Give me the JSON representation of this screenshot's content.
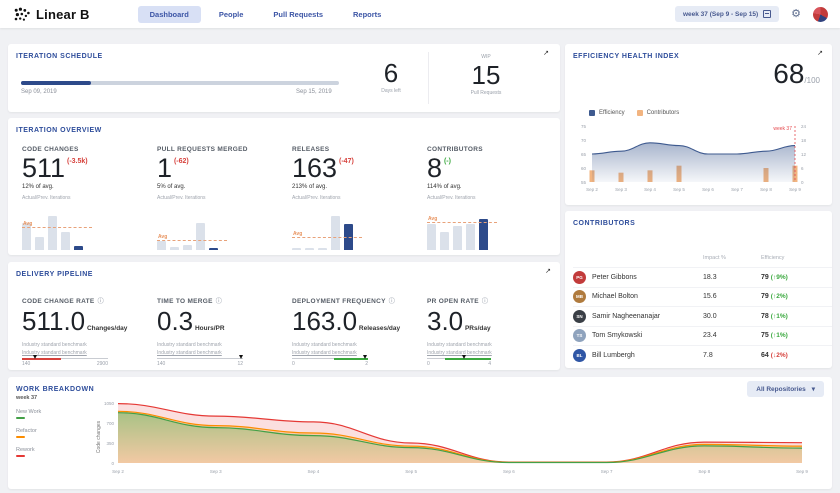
{
  "icons": {
    "gear": "⚙",
    "expand": "↗",
    "dropdown": "▾",
    "info": "ⓘ"
  },
  "topbar": {
    "brand": "Linear B",
    "tabs": [
      {
        "label": "Dashboard",
        "active": true
      },
      {
        "label": "People",
        "active": false
      },
      {
        "label": "Pull Requests",
        "active": false
      },
      {
        "label": "Reports",
        "active": false
      }
    ],
    "week_selector": "week 37 (Sep 9 - Sep 15)"
  },
  "schedule": {
    "title": "ITERATION SCHEDULE",
    "start_date": "Sep 09, 2019",
    "end_date": "Sep 15, 2019",
    "progress_pct": 22,
    "days_left_value": "6",
    "days_left_label": "Days left",
    "wip_label": "WIP",
    "wip_value": "15",
    "wip_sublabel": "Pull Requests"
  },
  "ehi": {
    "title": "EFFICIENCY HEALTH INDEX",
    "score": "68",
    "score_max": "/100",
    "legend": [
      {
        "label": "Efficiency",
        "color": "#3e5a8f"
      },
      {
        "label": "Contributors",
        "color": "#f2b480"
      }
    ],
    "marker_label": "week 37",
    "chart_data": {
      "type": "area+bar",
      "x": [
        "Sep 2",
        "Sep 3",
        "Sep 4",
        "Sep 5",
        "Sep 6",
        "Sep 7",
        "Sep 8",
        "Sep 9"
      ],
      "series": [
        {
          "name": "Efficiency",
          "axis": "left",
          "values": [
            65,
            66,
            69,
            68,
            65,
            65,
            66,
            68
          ]
        },
        {
          "name": "Contributors",
          "axis": "right",
          "values": [
            5,
            4,
            5,
            7,
            0,
            0,
            6,
            7
          ]
        }
      ],
      "left_ticks": [
        55,
        60,
        65,
        70,
        75
      ],
      "right_ticks": [
        0,
        6,
        12,
        18,
        24
      ],
      "left_range": [
        55,
        75
      ],
      "right_range": [
        0,
        24
      ]
    }
  },
  "overview": {
    "title": "ITERATION OVERVIEW",
    "sub_note": "Actual/Prev. Iterations",
    "avg_label": "Avg",
    "metrics": [
      {
        "label": "CODE CHANGES",
        "value": "511",
        "delta": "(-3.5k)",
        "delta_dir": "down",
        "avg": "12% of avg.",
        "bars": [
          62,
          30,
          78,
          42,
          10
        ],
        "dark_index": 4,
        "avg_line_pct": 52
      },
      {
        "label": "PULL REQUESTS MERGED",
        "value": "1",
        "delta": "(-62)",
        "delta_dir": "down",
        "avg": "5% of avg.",
        "bars": [
          20,
          7,
          12,
          62,
          4
        ],
        "dark_index": 4,
        "avg_line_pct": 22
      },
      {
        "label": "RELEASES",
        "value": "163",
        "delta": "(-47)",
        "delta_dir": "down",
        "avg": "213% of avg.",
        "bars": [
          5,
          5,
          5,
          78,
          60
        ],
        "dark_index": 4,
        "avg_line_pct": 30
      },
      {
        "label": "CONTRIBUTORS",
        "value": "8",
        "delta": "(-)",
        "delta_dir": "up",
        "avg": "114% of avg.",
        "bars": [
          58,
          40,
          55,
          60,
          70
        ],
        "dark_index": 4,
        "avg_line_pct": 63
      }
    ]
  },
  "contributors": {
    "title": "CONTRIBUTORS",
    "columns": [
      "Impact %",
      "Efficiency"
    ],
    "rows": [
      {
        "name": "Peter Gibbons",
        "initials": "PG",
        "avatar_color": "#c23b3b",
        "impact": "18.3",
        "efficiency": "79",
        "change": "(↑9%)",
        "dir": "up"
      },
      {
        "name": "Michael Bolton",
        "initials": "MB",
        "avatar_color": "#b07b3e",
        "impact": "15.6",
        "efficiency": "79",
        "change": "(↑2%)",
        "dir": "up"
      },
      {
        "name": "Samir Nagheenanajar",
        "initials": "SN",
        "avatar_color": "#3a3f46",
        "impact": "30.0",
        "efficiency": "78",
        "change": "(↑1%)",
        "dir": "up"
      },
      {
        "name": "Tom Smykowski",
        "initials": "TS",
        "avatar_color": "#8fa3bd",
        "impact": "23.4",
        "efficiency": "75",
        "change": "(↑1%)",
        "dir": "up"
      },
      {
        "name": "Bill Lumbergh",
        "initials": "BL",
        "avatar_color": "#2f56a5",
        "impact": "7.8",
        "efficiency": "64",
        "change": "(↓2%)",
        "dir": "down"
      }
    ]
  },
  "pipeline": {
    "title": "DELIVERY PIPELINE",
    "benchmark_label": "Industry standard benchmark",
    "metrics": [
      {
        "label": "CODE CHANGE RATE",
        "value": "511.0",
        "unit": "Changes/day",
        "scale_min": "140",
        "scale_max": "2900",
        "gauge_width": 86,
        "segment": {
          "color": "#d6413c",
          "from": 0,
          "to": 45
        },
        "marker_pct": 15
      },
      {
        "label": "TIME TO MERGE",
        "value": "0.3",
        "unit": "Hours/PR",
        "scale_min": "140",
        "scale_max": "12",
        "gauge_width": 86,
        "segment": null,
        "marker_pct": 98
      },
      {
        "label": "DEPLOYMENT FREQUENCY",
        "value": "163.0",
        "unit": "Releases/day",
        "scale_min": "0",
        "scale_max": "2",
        "gauge_width": 76,
        "segment": {
          "color": "#3aa83e",
          "from": 55,
          "to": 100
        },
        "marker_pct": 96
      },
      {
        "label": "PR OPEN RATE",
        "value": "3.0",
        "unit": "PRs/day",
        "scale_min": "0",
        "scale_max": "4",
        "gauge_width": 64,
        "segment": {
          "color": "#3aa83e",
          "from": 28,
          "to": 100
        },
        "marker_pct": 58
      }
    ]
  },
  "work_breakdown": {
    "title": "WORK BREAKDOWN",
    "subtitle": "week 37",
    "repos_filter": "All Repositories",
    "ylabel": "Code changes",
    "legend": [
      {
        "label": "New Work",
        "color": "#43a047"
      },
      {
        "label": "Refactor",
        "color": "#fb8c00"
      },
      {
        "label": "Rework",
        "color": "#e53935"
      }
    ],
    "chart_data": {
      "type": "area",
      "stacked": true,
      "x": [
        "Sep 2",
        "Sep 3",
        "Sep 4",
        "Sep 5",
        "Sep 6",
        "Sep 7",
        "Sep 8",
        "Sep 9"
      ],
      "series": [
        {
          "name": "New Work",
          "values": [
            880,
            620,
            480,
            270,
            8,
            8,
            300,
            260
          ]
        },
        {
          "name": "Refactor",
          "values": [
            25,
            35,
            45,
            25,
            4,
            4,
            25,
            35
          ]
        },
        {
          "name": "Rework",
          "values": [
            135,
            165,
            195,
            55,
            4,
            4,
            40,
            60
          ]
        }
      ],
      "y_ticks": [
        0,
        350,
        700,
        1050
      ],
      "ylim": [
        0,
        1050
      ]
    }
  }
}
